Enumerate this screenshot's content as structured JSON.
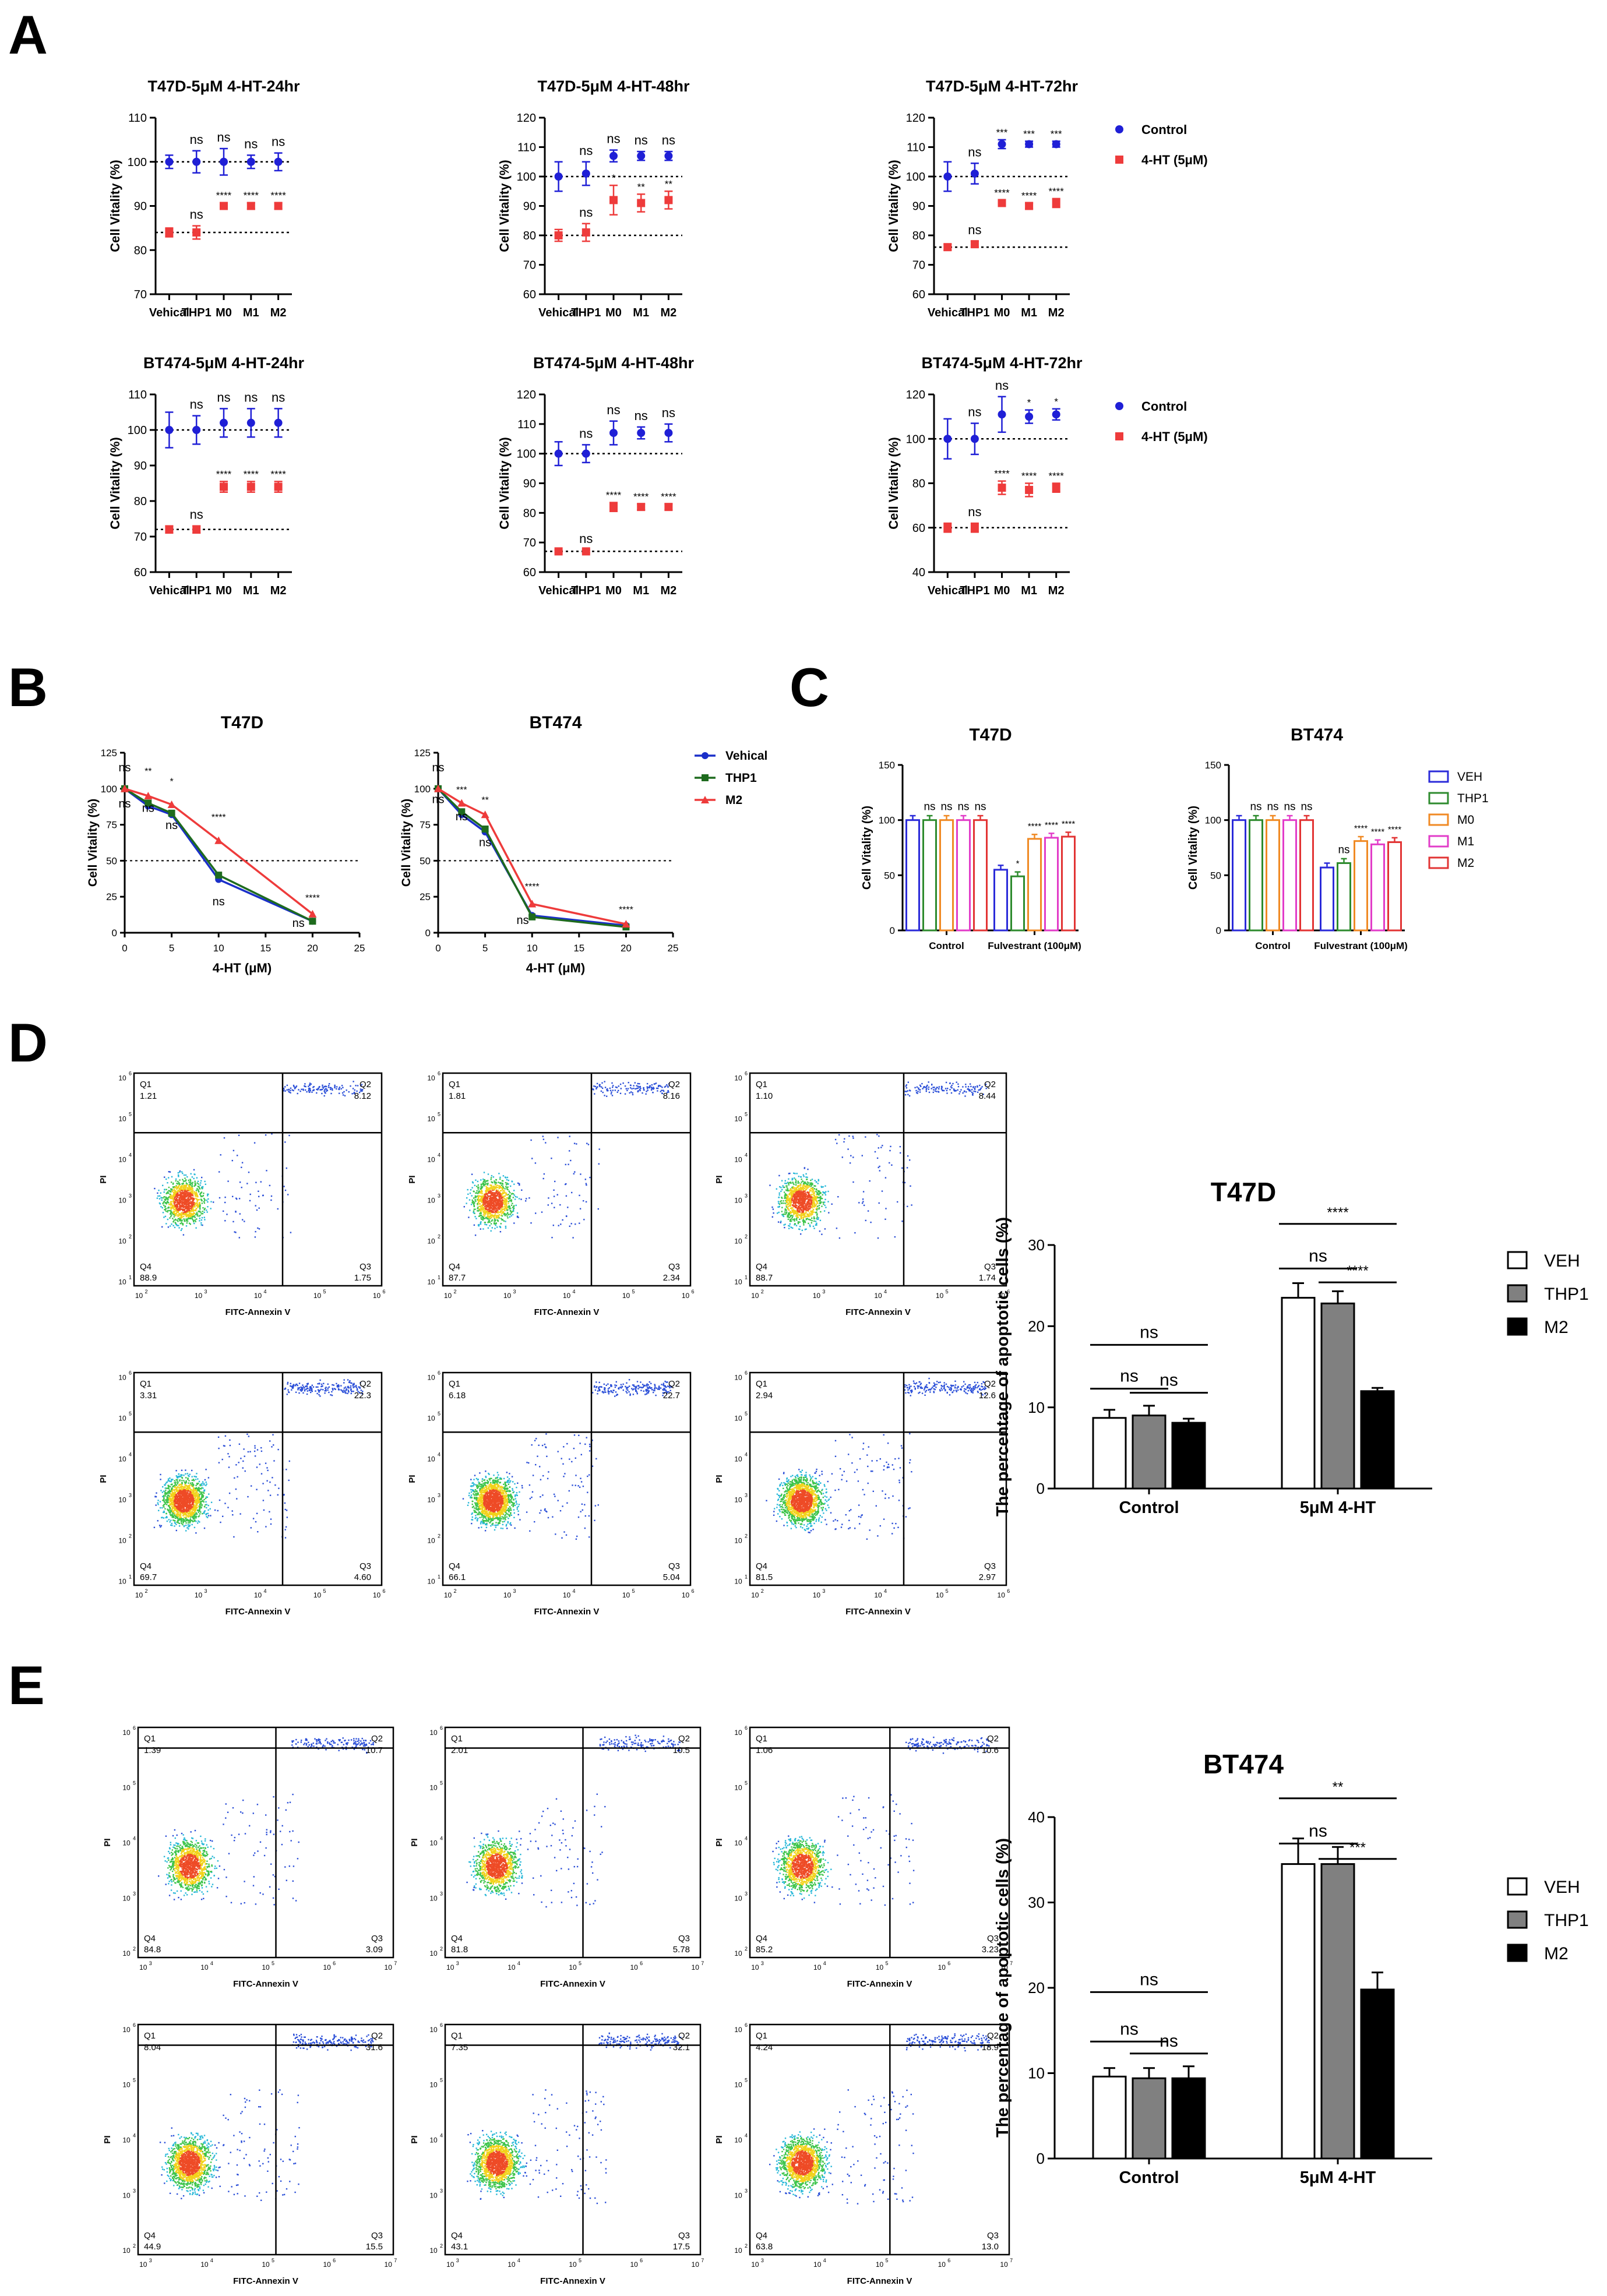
{
  "panels": {
    "A": "A",
    "B": "B",
    "C": "C",
    "D": "D",
    "E": "E"
  },
  "chart_data": [
    {
      "id": "a1",
      "type": "scatter",
      "title": "T47D-5μM 4-HT-24hr",
      "ylabel": "Cell Vitality (%)",
      "ylim": [
        70,
        110
      ],
      "yticks": [
        70,
        80,
        90,
        100,
        110
      ],
      "categories": [
        "Vehical",
        "THP1",
        "M0",
        "M1",
        "M2"
      ],
      "series": [
        {
          "name": "Control",
          "color": "#1f1fd6",
          "values": [
            100,
            100,
            100,
            100,
            100
          ],
          "errors": [
            1.5,
            2.5,
            3,
            1.5,
            2
          ],
          "sig": [
            "",
            "ns",
            "ns",
            "ns",
            "ns"
          ]
        },
        {
          "name": "4-HT (5μM)",
          "color": "#ee3b3b",
          "values": [
            84,
            84,
            90,
            90,
            90
          ],
          "errors": [
            1,
            1.5,
            0.7,
            0.7,
            0.7
          ],
          "sig": [
            "",
            "ns",
            "****",
            "****",
            "****"
          ]
        }
      ],
      "reflines": [
        100,
        84
      ]
    },
    {
      "id": "a2",
      "type": "scatter",
      "title": "T47D-5μM 4-HT-48hr",
      "ylabel": "Cell Vitality (%)",
      "ylim": [
        60,
        120
      ],
      "yticks": [
        60,
        70,
        80,
        90,
        100,
        110,
        120
      ],
      "categories": [
        "Vehical",
        "THP1",
        "M0",
        "M1",
        "M2"
      ],
      "series": [
        {
          "name": "Control",
          "color": "#1f1fd6",
          "values": [
            100,
            101,
            107,
            107,
            107
          ],
          "errors": [
            5,
            4,
            2,
            1.5,
            1.5
          ],
          "sig": [
            "",
            "ns",
            "ns",
            "ns",
            "ns"
          ]
        },
        {
          "name": "4-HT (5μM)",
          "color": "#ee3b3b",
          "values": [
            80,
            81,
            92,
            91,
            92
          ],
          "errors": [
            2,
            3,
            5,
            3,
            3
          ],
          "sig": [
            "",
            "ns",
            "*",
            "**",
            "**"
          ]
        }
      ],
      "reflines": [
        100,
        80
      ]
    },
    {
      "id": "a3",
      "type": "scatter",
      "title": "T47D-5μM 4-HT-72hr",
      "ylabel": "Cell Vitality (%)",
      "ylim": [
        60,
        120
      ],
      "yticks": [
        60,
        70,
        80,
        90,
        100,
        110,
        120
      ],
      "categories": [
        "Vehical",
        "THP1",
        "M0",
        "M1",
        "M2"
      ],
      "series": [
        {
          "name": "Control",
          "color": "#1f1fd6",
          "values": [
            100,
            101,
            111,
            111,
            111
          ],
          "errors": [
            5,
            3.5,
            1.5,
            1,
            1
          ],
          "sig": [
            "",
            "ns",
            "***",
            "***",
            "***"
          ]
        },
        {
          "name": "4-HT (5μM)",
          "color": "#ee3b3b",
          "values": [
            76,
            77,
            91,
            90,
            91
          ],
          "errors": [
            1,
            1,
            1,
            1,
            1.5
          ],
          "sig": [
            "",
            "ns",
            "****",
            "****",
            "****"
          ]
        }
      ],
      "reflines": [
        100,
        76
      ],
      "legend": [
        "Control",
        "4-HT (5μM)"
      ]
    },
    {
      "id": "a4",
      "type": "scatter",
      "title": "BT474-5μM 4-HT-24hr",
      "ylabel": "Cell Vitality (%)",
      "ylim": [
        60,
        110
      ],
      "yticks": [
        60,
        70,
        80,
        90,
        100,
        110
      ],
      "categories": [
        "Vehical",
        "THP1",
        "M0",
        "M1",
        "M2"
      ],
      "series": [
        {
          "name": "Control",
          "color": "#1f1fd6",
          "values": [
            100,
            100,
            102,
            102,
            102
          ],
          "errors": [
            5,
            4,
            4,
            4,
            4
          ],
          "sig": [
            "",
            "ns",
            "ns",
            "ns",
            "ns"
          ]
        },
        {
          "name": "4-HT (5μM)",
          "color": "#ee3b3b",
          "values": [
            72,
            72,
            84,
            84,
            84
          ],
          "errors": [
            1,
            1,
            1.5,
            1.5,
            1.5
          ],
          "sig": [
            "",
            "ns",
            "****",
            "****",
            "****"
          ]
        }
      ],
      "reflines": [
        100,
        72
      ]
    },
    {
      "id": "a5",
      "type": "scatter",
      "title": "BT474-5μM 4-HT-48hr",
      "ylabel": "Cell Vitality (%)",
      "ylim": [
        60,
        120
      ],
      "yticks": [
        60,
        70,
        80,
        90,
        100,
        110,
        120
      ],
      "categories": [
        "Vehical",
        "THP1",
        "M0",
        "M1",
        "M2"
      ],
      "series": [
        {
          "name": "Control",
          "color": "#1f1fd6",
          "values": [
            100,
            100,
            107,
            107,
            107
          ],
          "errors": [
            4,
            3,
            4,
            2,
            3
          ],
          "sig": [
            "",
            "ns",
            "ns",
            "ns",
            "ns"
          ]
        },
        {
          "name": "4-HT (5μM)",
          "color": "#ee3b3b",
          "values": [
            67,
            67,
            82,
            82,
            82
          ],
          "errors": [
            0.5,
            0.5,
            1.5,
            1,
            1
          ],
          "sig": [
            "",
            "ns",
            "****",
            "****",
            "****"
          ]
        }
      ],
      "reflines": [
        100,
        67
      ]
    },
    {
      "id": "a6",
      "type": "scatter",
      "title": "BT474-5μM 4-HT-72hr",
      "ylabel": "Cell Vitality (%)",
      "ylim": [
        40,
        120
      ],
      "yticks": [
        40,
        60,
        80,
        100,
        120
      ],
      "categories": [
        "Vehical",
        "THP1",
        "M0",
        "M1",
        "M2"
      ],
      "series": [
        {
          "name": "Control",
          "color": "#1f1fd6",
          "values": [
            100,
            100,
            111,
            110,
            111
          ],
          "errors": [
            9,
            7,
            8,
            3,
            2.5
          ],
          "sig": [
            "",
            "ns",
            "ns",
            "*",
            "*"
          ]
        },
        {
          "name": "4-HT (5μM)",
          "color": "#ee3b3b",
          "values": [
            60,
            60,
            78,
            77,
            78
          ],
          "errors": [
            2,
            2,
            3,
            3,
            2
          ],
          "sig": [
            "",
            "ns",
            "****",
            "****",
            "****"
          ]
        }
      ],
      "reflines": [
        100,
        60
      ],
      "legend": [
        "Control",
        "4-HT (5μM)"
      ]
    },
    {
      "id": "b1",
      "type": "line",
      "title": "T47D",
      "xlabel": "4-HT (μM)",
      "ylabel": "Cell Vitality (%)",
      "xlim": [
        0,
        25
      ],
      "ylim": [
        0,
        125
      ],
      "xticks": [
        0,
        5,
        10,
        15,
        20,
        25
      ],
      "yticks": [
        0,
        25,
        50,
        75,
        100,
        125
      ],
      "x": [
        0,
        2.5,
        5,
        10,
        20
      ],
      "series": [
        {
          "name": "Vehical",
          "color": "#1a2fc9",
          "marker": "circle",
          "values": [
            100,
            88,
            82,
            37,
            8
          ]
        },
        {
          "name": "THP1",
          "color": "#1e6b1e",
          "marker": "square",
          "values": [
            100,
            90,
            83,
            40,
            8
          ]
        },
        {
          "name": "M2",
          "color": "#ee3b3b",
          "marker": "triangle",
          "values": [
            100,
            95,
            89,
            64,
            13
          ]
        }
      ],
      "annotations": [
        {
          "x": 0,
          "y": 112,
          "t": "ns"
        },
        {
          "x": 0,
          "y": 87,
          "t": "ns"
        },
        {
          "x": 2.5,
          "y": 110,
          "t": "**"
        },
        {
          "x": 2.5,
          "y": 84,
          "t": "ns"
        },
        {
          "x": 5,
          "y": 103,
          "t": "*"
        },
        {
          "x": 5,
          "y": 72,
          "t": "ns"
        },
        {
          "x": 10,
          "y": 78,
          "t": "****"
        },
        {
          "x": 10,
          "y": 19,
          "t": "ns"
        },
        {
          "x": 20,
          "y": 22,
          "t": "****"
        },
        {
          "x": 18.5,
          "y": 4,
          "t": "ns"
        }
      ],
      "refline": 50
    },
    {
      "id": "b2",
      "type": "line",
      "title": "BT474",
      "xlabel": "4-HT (μM)",
      "ylabel": "Cell Vitality (%)",
      "xlim": [
        0,
        25
      ],
      "ylim": [
        0,
        125
      ],
      "xticks": [
        0,
        5,
        10,
        15,
        20,
        25
      ],
      "yticks": [
        0,
        25,
        50,
        75,
        100,
        125
      ],
      "x": [
        0,
        2.5,
        5,
        10,
        20
      ],
      "series": [
        {
          "name": "Vehical",
          "color": "#1a2fc9",
          "marker": "circle",
          "values": [
            100,
            82,
            70,
            12,
            5
          ]
        },
        {
          "name": "THP1",
          "color": "#1e6b1e",
          "marker": "square",
          "values": [
            100,
            84,
            72,
            11,
            4
          ]
        },
        {
          "name": "M2",
          "color": "#ee3b3b",
          "marker": "triangle",
          "values": [
            100,
            90,
            82,
            20,
            6
          ]
        }
      ],
      "annotations": [
        {
          "x": 0,
          "y": 112,
          "t": "ns"
        },
        {
          "x": 0,
          "y": 90,
          "t": "ns"
        },
        {
          "x": 2.5,
          "y": 97,
          "t": "***"
        },
        {
          "x": 2.5,
          "y": 78,
          "t": "ns"
        },
        {
          "x": 5,
          "y": 90,
          "t": "**"
        },
        {
          "x": 5,
          "y": 60,
          "t": "ns"
        },
        {
          "x": 10,
          "y": 30,
          "t": "****"
        },
        {
          "x": 9,
          "y": 6,
          "t": "ns"
        },
        {
          "x": 20,
          "y": 14,
          "t": "****"
        }
      ],
      "refline": 50,
      "legend": [
        "Vehical",
        "THP1",
        "M2"
      ]
    },
    {
      "id": "c1",
      "type": "bar",
      "title": "T47D",
      "ylabel": "Cell Vitality (%)",
      "ylim": [
        0,
        150
      ],
      "yticks": [
        0,
        50,
        100,
        150
      ],
      "categories": [
        "Control",
        "Fulvestrant (100μM)"
      ],
      "series": [
        {
          "name": "VEH",
          "color": "#2b2bd9",
          "values": [
            100,
            55
          ],
          "sig": [
            "",
            ""
          ]
        },
        {
          "name": "THP1",
          "color": "#2e8b2e",
          "values": [
            100,
            49
          ],
          "sig": [
            "ns",
            "*"
          ]
        },
        {
          "name": "M0",
          "color": "#f08a24",
          "values": [
            100,
            83
          ],
          "sig": [
            "ns",
            "****"
          ]
        },
        {
          "name": "M1",
          "color": "#e23cc8",
          "values": [
            100,
            84
          ],
          "sig": [
            "ns",
            "****"
          ]
        },
        {
          "name": "M2",
          "color": "#e23434",
          "values": [
            100,
            85
          ],
          "sig": [
            "ns",
            "****"
          ]
        }
      ]
    },
    {
      "id": "c2",
      "type": "bar",
      "title": "BT474",
      "ylabel": "Cell Vitality (%)",
      "ylim": [
        0,
        150
      ],
      "yticks": [
        0,
        50,
        100,
        150
      ],
      "categories": [
        "Control",
        "Fulvestrant (100μM)"
      ],
      "series": [
        {
          "name": "VEH",
          "color": "#2b2bd9",
          "values": [
            100,
            57
          ],
          "sig": [
            "",
            ""
          ]
        },
        {
          "name": "THP1",
          "color": "#2e8b2e",
          "values": [
            100,
            61
          ],
          "sig": [
            "ns",
            "ns"
          ]
        },
        {
          "name": "M0",
          "color": "#f08a24",
          "values": [
            100,
            81
          ],
          "sig": [
            "ns",
            "****"
          ]
        },
        {
          "name": "M1",
          "color": "#e23cc8",
          "values": [
            100,
            78
          ],
          "sig": [
            "ns",
            "****"
          ]
        },
        {
          "name": "M2",
          "color": "#e23434",
          "values": [
            100,
            80
          ],
          "sig": [
            "ns",
            "****"
          ]
        }
      ],
      "legend": [
        "VEH",
        "THP1",
        "M0",
        "M1",
        "M2"
      ]
    },
    {
      "id": "d_bar",
      "type": "bar",
      "title": "T47D",
      "ylabel": "The percentage of apoptotic cells (%)",
      "ylim": [
        0,
        30
      ],
      "yticks": [
        0,
        10,
        20,
        30
      ],
      "categories": [
        "Control",
        "5μM 4-HT"
      ],
      "series": [
        {
          "name": "VEH",
          "color": "#ffffff",
          "values": [
            8.7,
            23.5
          ],
          "errors": [
            1,
            1.8
          ]
        },
        {
          "name": "THP1",
          "color": "#808080",
          "values": [
            9,
            22.8
          ],
          "errors": [
            1.2,
            1.5
          ]
        },
        {
          "name": "M2",
          "color": "#000000",
          "values": [
            8.1,
            12
          ],
          "errors": [
            0.5,
            0.4
          ]
        }
      ],
      "brackets": [
        {
          "g": 0,
          "a": 0,
          "b": 2,
          "y": 17.7,
          "t": "ns"
        },
        {
          "g": 0,
          "a": 0,
          "b": 1,
          "y": 12.3,
          "t": "ns"
        },
        {
          "g": 0,
          "a": 1,
          "b": 2,
          "y": 11.8,
          "t": "ns"
        },
        {
          "g": 1,
          "a": 0,
          "b": 2,
          "y": 32.6,
          "t": "****"
        },
        {
          "g": 1,
          "a": 0,
          "b": 1,
          "y": 27.1,
          "t": "ns"
        },
        {
          "g": 1,
          "a": 1,
          "b": 2,
          "y": 25.4,
          "t": "****"
        }
      ]
    },
    {
      "id": "e_bar",
      "type": "bar",
      "title": "BT474",
      "ylabel": "The percentage of apoptotic cells (%)",
      "ylim": [
        0,
        40
      ],
      "yticks": [
        0,
        10,
        20,
        30,
        40
      ],
      "categories": [
        "Control",
        "5μM 4-HT"
      ],
      "series": [
        {
          "name": "VEH",
          "color": "#ffffff",
          "values": [
            9.6,
            34.5
          ],
          "errors": [
            1,
            3
          ]
        },
        {
          "name": "THP1",
          "color": "#808080",
          "values": [
            9.4,
            34.5
          ],
          "errors": [
            1.2,
            2
          ]
        },
        {
          "name": "M2",
          "color": "#000000",
          "values": [
            9.4,
            19.8
          ],
          "errors": [
            1.4,
            2
          ]
        }
      ],
      "brackets": [
        {
          "g": 0,
          "a": 0,
          "b": 2,
          "y": 19.5,
          "t": "ns"
        },
        {
          "g": 0,
          "a": 0,
          "b": 1,
          "y": 13.7,
          "t": "ns"
        },
        {
          "g": 0,
          "a": 1,
          "b": 2,
          "y": 12.3,
          "t": "ns"
        },
        {
          "g": 1,
          "a": 0,
          "b": 2,
          "y": 42.2,
          "t": "**"
        },
        {
          "g": 1,
          "a": 0,
          "b": 1,
          "y": 36.9,
          "t": "ns"
        },
        {
          "g": 1,
          "a": 1,
          "b": 2,
          "y": 35.1,
          "t": "***"
        }
      ]
    }
  ],
  "flow": {
    "xlabel": "FITC-Annexin V",
    "ylabel": "PI",
    "D": [
      {
        "Q1": "1.21",
        "Q2": "8.12",
        "Q3": "1.75",
        "Q4": "88.9"
      },
      {
        "Q1": "1.81",
        "Q2": "8.16",
        "Q3": "2.34",
        "Q4": "87.7"
      },
      {
        "Q1": "1.10",
        "Q2": "8.44",
        "Q3": "1.74",
        "Q4": "88.7"
      },
      {
        "Q1": "3.31",
        "Q2": "22.3",
        "Q3": "4.60",
        "Q4": "69.7"
      },
      {
        "Q1": "6.18",
        "Q2": "22.7",
        "Q3": "5.04",
        "Q4": "66.1"
      },
      {
        "Q1": "2.94",
        "Q2": "12.6",
        "Q3": "2.97",
        "Q4": "81.5"
      }
    ],
    "E": [
      {
        "Q1": "1.39",
        "Q2": "10.7",
        "Q3": "3.09",
        "Q4": "84.8"
      },
      {
        "Q1": "2.01",
        "Q2": "10.5",
        "Q3": "5.78",
        "Q4": "81.8"
      },
      {
        "Q1": "1.06",
        "Q2": "10.6",
        "Q3": "3.23",
        "Q4": "85.2"
      },
      {
        "Q1": "8.04",
        "Q2": "31.6",
        "Q3": "15.5",
        "Q4": "44.9"
      },
      {
        "Q1": "7.35",
        "Q2": "32.1",
        "Q3": "17.5",
        "Q4": "43.1"
      },
      {
        "Q1": "4.24",
        "Q2": "18.9",
        "Q3": "13.0",
        "Q4": "63.8"
      }
    ]
  }
}
